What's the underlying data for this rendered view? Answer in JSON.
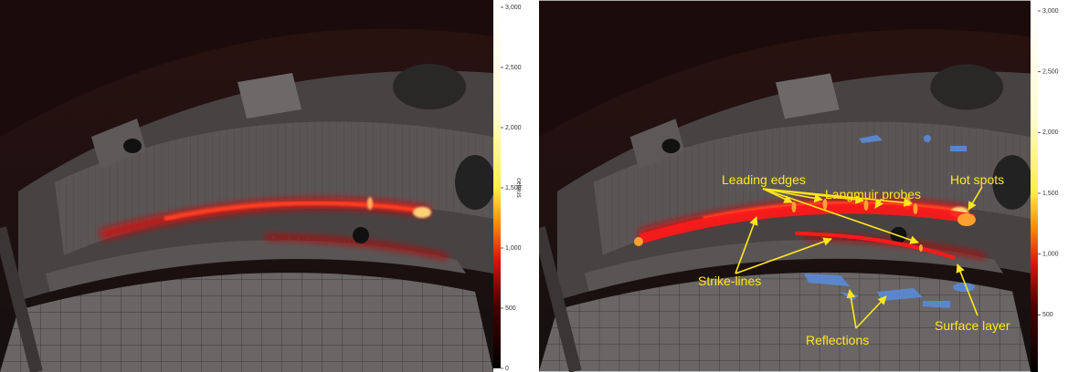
{
  "panels": [
    {
      "colorbar": {
        "unit": "celsius",
        "lim": [
          0,
          3000
        ],
        "ticks": [
          0,
          {
            "value": 500,
            "label": "500"
          },
          {
            "value": 1000,
            "label": "1,000"
          },
          {
            "value": 1500,
            "label": "1,500"
          },
          {
            "value": 2000,
            "label": "2,000"
          },
          {
            "value": 2500,
            "label": "2,500"
          },
          {
            "value": 3000,
            "label": "3,000"
          }
        ]
      }
    },
    {
      "colorbar": {
        "lim": [
          0,
          3000
        ],
        "ticks": [
          {
            "value": 500,
            "label": "500"
          },
          {
            "value": 1000,
            "label": "1,000"
          },
          {
            "value": 1500,
            "label": "1,500"
          },
          {
            "value": 2000,
            "label": "2,000"
          },
          {
            "value": 2500,
            "label": "2,500"
          },
          {
            "value": 3000,
            "label": "3,000"
          }
        ]
      },
      "annotations": [
        "Leading edges",
        "Langmuir probes",
        "Hot spots",
        "Strike-lines",
        "Reflections",
        "Surface layer"
      ]
    }
  ]
}
